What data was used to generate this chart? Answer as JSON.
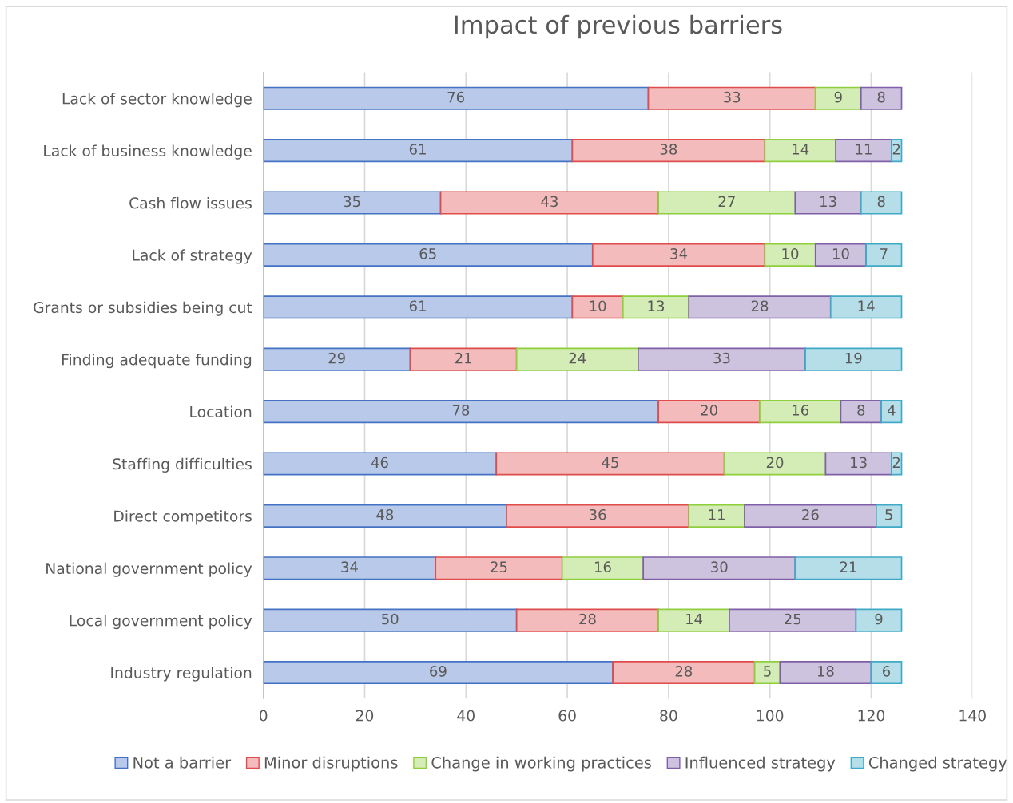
{
  "chart_data": {
    "type": "bar",
    "orientation": "horizontal",
    "stacked": true,
    "title": "Impact of previous barriers",
    "categories": [
      "Lack of sector knowledge",
      "Lack of business knowledge",
      "Cash flow issues",
      "Lack of strategy",
      "Grants or subsidies being cut",
      "Finding adequate funding",
      "Location",
      "Staffing difficulties",
      "Direct competitors",
      "National government policy",
      "Local government policy",
      "Industry regulation"
    ],
    "series": [
      {
        "name": "Not a barrier",
        "color": "#4472c4",
        "values": [
          76,
          61,
          35,
          65,
          61,
          29,
          78,
          46,
          48,
          34,
          50,
          69
        ]
      },
      {
        "name": "Minor disruptions",
        "color": "#e04b4b",
        "values": [
          33,
          38,
          43,
          34,
          10,
          21,
          20,
          45,
          36,
          25,
          28,
          28
        ]
      },
      {
        "name": "Change in working practices",
        "color": "#8fce3c",
        "values": [
          9,
          14,
          27,
          10,
          13,
          24,
          16,
          20,
          11,
          16,
          14,
          5
        ]
      },
      {
        "name": "Influenced strategy",
        "color": "#7f60a8",
        "values": [
          8,
          11,
          13,
          10,
          28,
          33,
          8,
          13,
          26,
          30,
          25,
          18
        ]
      },
      {
        "name": "Changed strategy",
        "color": "#3fa9c6",
        "values": [
          null,
          2,
          8,
          7,
          14,
          19,
          4,
          2,
          5,
          21,
          9,
          6
        ]
      }
    ],
    "xlim": [
      0,
      140
    ],
    "xticks": [
      0,
      20,
      40,
      60,
      80,
      100,
      120,
      140
    ],
    "grid": "x",
    "legend": "bottom",
    "data_labels": true
  }
}
